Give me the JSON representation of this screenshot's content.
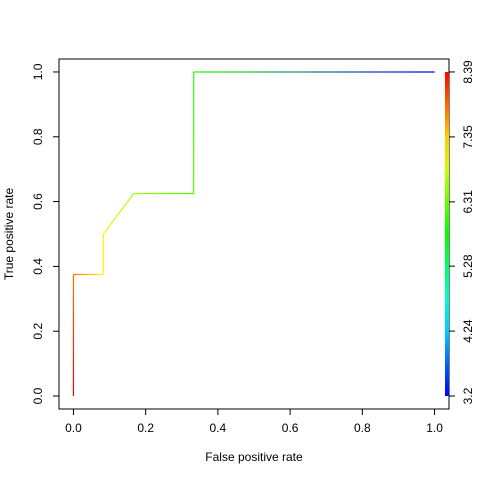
{
  "chart_data": {
    "type": "line",
    "x_label": "False positive rate",
    "y_label": "True positive rate",
    "x": [
      0,
      0,
      0.083,
      0.083,
      0.167,
      0.333,
      0.333,
      1
    ],
    "series": [
      {
        "values": [
          0,
          0.375,
          0.375,
          0.5,
          0.625,
          0.625,
          1,
          1
        ],
        "cutoffs": [
          8.39,
          7.8,
          7.1,
          7.0,
          6.6,
          6.2,
          6.0,
          3.2
        ]
      }
    ],
    "xlim": [
      -0.04,
      1.04
    ],
    "ylim": [
      -0.04,
      1.04
    ],
    "xticks": [
      {
        "value": 0,
        "label": "0.0"
      },
      {
        "value": 0.2,
        "label": "0.2"
      },
      {
        "value": 0.4,
        "label": "0.4"
      },
      {
        "value": 0.6,
        "label": "0.6"
      },
      {
        "value": 0.8,
        "label": "0.8"
      },
      {
        "value": 1,
        "label": "1.0"
      }
    ],
    "yticks": [
      {
        "value": 0,
        "label": "0.0"
      },
      {
        "value": 0.2,
        "label": "0.2"
      },
      {
        "value": 0.4,
        "label": "0.4"
      },
      {
        "value": 0.6,
        "label": "0.6"
      },
      {
        "value": 0.8,
        "label": "0.8"
      },
      {
        "value": 1,
        "label": "1.0"
      }
    ],
    "colorbar": {
      "lim": [
        3.2,
        8.39
      ],
      "ticks": [
        3.2,
        4.24,
        5.28,
        6.31,
        7.35,
        8.39
      ]
    }
  }
}
